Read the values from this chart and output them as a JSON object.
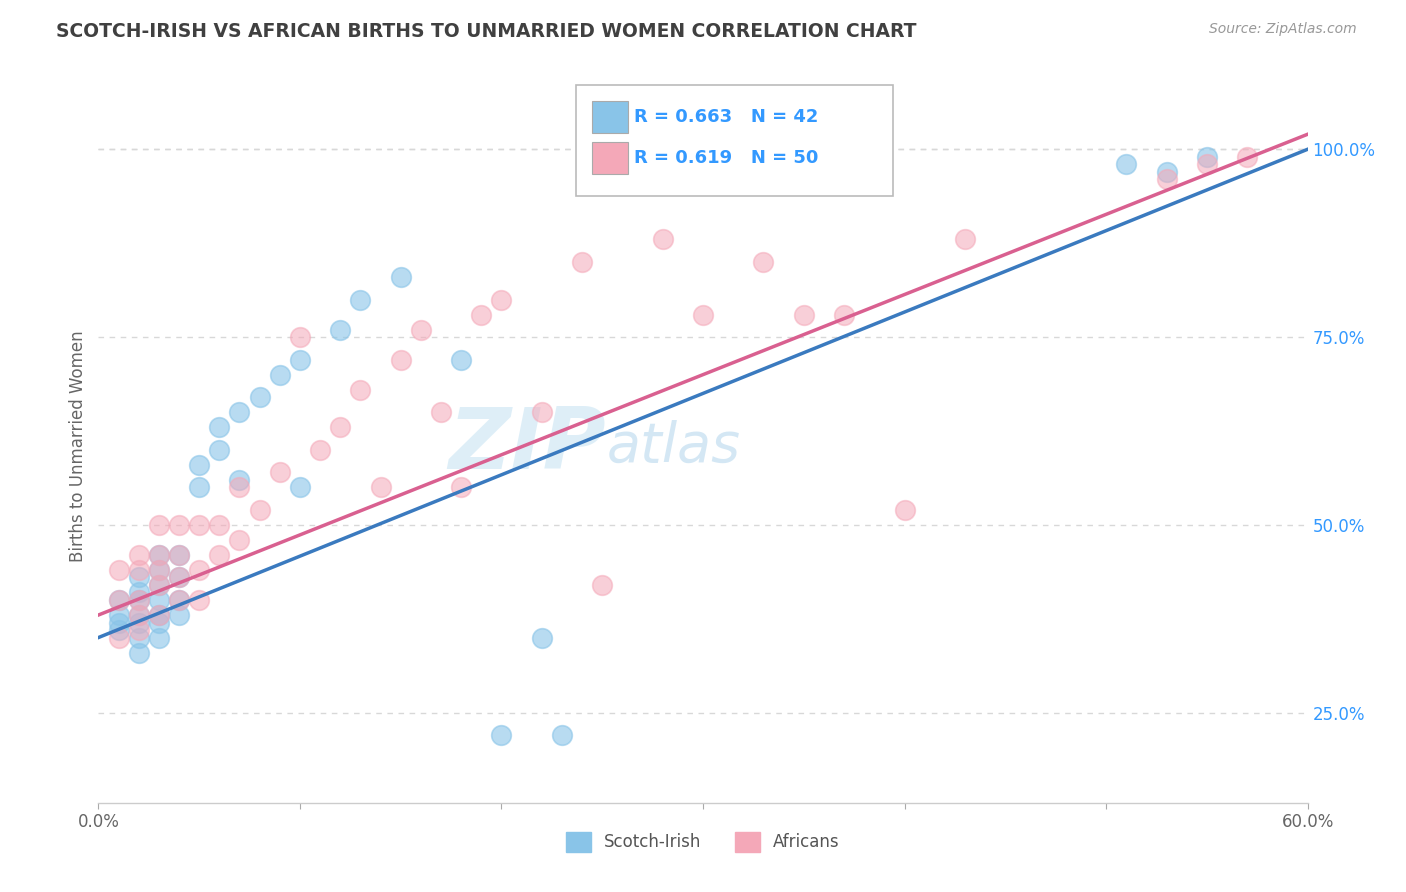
{
  "title": "SCOTCH-IRISH VS AFRICAN BIRTHS TO UNMARRIED WOMEN CORRELATION CHART",
  "source": "Source: ZipAtlas.com",
  "ylabel": "Births to Unmarried Women",
  "yticks": [
    0.25,
    0.5,
    0.75,
    1.0
  ],
  "ytick_labels": [
    "25.0%",
    "50.0%",
    "75.0%",
    "100.0%"
  ],
  "xmin": 0.0,
  "xmax": 0.6,
  "ymin": 0.13,
  "ymax": 1.08,
  "legend_blue_label": "R = 0.663   N = 42",
  "legend_pink_label": "R = 0.619   N = 50",
  "series_blue_label": "Scotch-Irish",
  "series_pink_label": "Africans",
  "blue_color": "#89c4e8",
  "pink_color": "#f4a8b8",
  "blue_line_color": "#3a7abf",
  "pink_line_color": "#d96090",
  "title_color": "#404040",
  "grid_color": "#d8d8d8",
  "legend_text_color": "#3399ff",
  "watermark_zip": "ZIP",
  "watermark_atlas": "atlas",
  "blue_x": [
    0.01,
    0.01,
    0.01,
    0.01,
    0.02,
    0.02,
    0.02,
    0.02,
    0.02,
    0.02,
    0.02,
    0.03,
    0.03,
    0.03,
    0.03,
    0.03,
    0.03,
    0.03,
    0.04,
    0.04,
    0.04,
    0.04,
    0.05,
    0.05,
    0.06,
    0.06,
    0.07,
    0.07,
    0.08,
    0.09,
    0.1,
    0.1,
    0.12,
    0.13,
    0.15,
    0.18,
    0.2,
    0.22,
    0.23,
    0.51,
    0.53,
    0.55
  ],
  "blue_y": [
    0.36,
    0.37,
    0.38,
    0.4,
    0.33,
    0.35,
    0.37,
    0.38,
    0.4,
    0.41,
    0.43,
    0.35,
    0.37,
    0.38,
    0.4,
    0.42,
    0.44,
    0.46,
    0.38,
    0.4,
    0.43,
    0.46,
    0.55,
    0.58,
    0.6,
    0.63,
    0.56,
    0.65,
    0.67,
    0.7,
    0.55,
    0.72,
    0.76,
    0.8,
    0.83,
    0.72,
    0.22,
    0.35,
    0.22,
    0.98,
    0.97,
    0.99
  ],
  "pink_x": [
    0.01,
    0.01,
    0.01,
    0.02,
    0.02,
    0.02,
    0.02,
    0.02,
    0.03,
    0.03,
    0.03,
    0.03,
    0.03,
    0.04,
    0.04,
    0.04,
    0.04,
    0.05,
    0.05,
    0.05,
    0.06,
    0.06,
    0.07,
    0.07,
    0.08,
    0.09,
    0.1,
    0.11,
    0.12,
    0.13,
    0.14,
    0.15,
    0.16,
    0.17,
    0.18,
    0.19,
    0.2,
    0.22,
    0.24,
    0.25,
    0.28,
    0.3,
    0.33,
    0.35,
    0.37,
    0.4,
    0.43,
    0.53,
    0.55,
    0.57
  ],
  "pink_y": [
    0.35,
    0.4,
    0.44,
    0.36,
    0.38,
    0.4,
    0.44,
    0.46,
    0.38,
    0.42,
    0.44,
    0.46,
    0.5,
    0.4,
    0.43,
    0.46,
    0.5,
    0.4,
    0.44,
    0.5,
    0.46,
    0.5,
    0.48,
    0.55,
    0.52,
    0.57,
    0.75,
    0.6,
    0.63,
    0.68,
    0.55,
    0.72,
    0.76,
    0.65,
    0.55,
    0.78,
    0.8,
    0.65,
    0.85,
    0.42,
    0.88,
    0.78,
    0.85,
    0.78,
    0.78,
    0.52,
    0.88,
    0.96,
    0.98,
    0.99
  ],
  "blue_trend": [
    0.0,
    0.6,
    0.35,
    1.0
  ],
  "pink_trend": [
    0.0,
    0.6,
    0.38,
    1.02
  ],
  "figwidth": 14.06,
  "figheight": 8.92,
  "dpi": 100
}
